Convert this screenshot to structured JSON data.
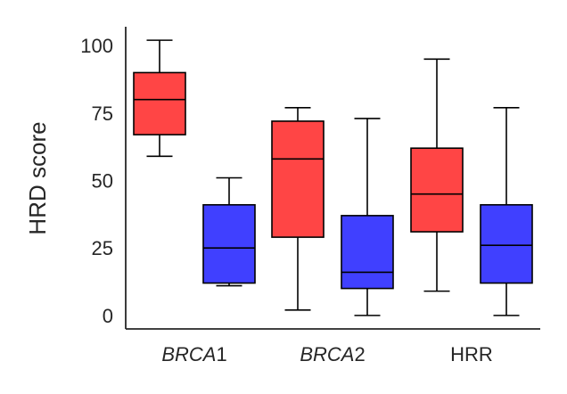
{
  "chart_data": {
    "type": "box",
    "ylabel": "HRD score",
    "xlabel": "",
    "ylim": [
      -5,
      107
    ],
    "yticks": [
      0,
      25,
      50,
      75,
      100
    ],
    "grid": false,
    "categories": [
      {
        "prefix": "BRCA",
        "suffix": "1",
        "italic_prefix": true
      },
      {
        "prefix": "BRCA",
        "suffix": "2",
        "italic_prefix": true
      },
      {
        "prefix": "HRR",
        "suffix": "",
        "italic_prefix": false
      }
    ],
    "colors": {
      "group_a": "#FF4545",
      "group_b": "#4040FF",
      "stroke": "#000000",
      "axis": "#262626"
    },
    "boxes": [
      {
        "category": 0,
        "group": "group_a",
        "whisker_low": 59,
        "q1": 67,
        "median": 80,
        "q3": 90,
        "whisker_high": 102
      },
      {
        "category": 0,
        "group": "group_b",
        "whisker_low": 11,
        "q1": 12,
        "median": 25,
        "q3": 41,
        "whisker_high": 51
      },
      {
        "category": 1,
        "group": "group_a",
        "whisker_low": 2,
        "q1": 29,
        "median": 58,
        "q3": 72,
        "whisker_high": 77
      },
      {
        "category": 1,
        "group": "group_b",
        "whisker_low": 0,
        "q1": 10,
        "median": 16,
        "q3": 37,
        "whisker_high": 73
      },
      {
        "category": 2,
        "group": "group_a",
        "whisker_low": 9,
        "q1": 31,
        "median": 45,
        "q3": 62,
        "whisker_high": 95
      },
      {
        "category": 2,
        "group": "group_b",
        "whisker_low": 0,
        "q1": 12,
        "median": 26,
        "q3": 41,
        "whisker_high": 77
      }
    ]
  }
}
